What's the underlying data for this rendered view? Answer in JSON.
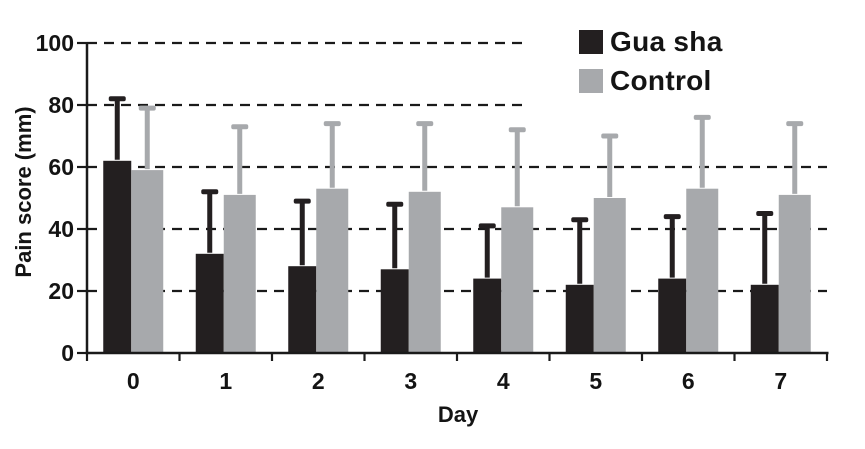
{
  "chart_data": {
    "type": "bar",
    "title": "",
    "xlabel": "Day",
    "ylabel": "Pain score (mm)",
    "categories": [
      "0",
      "1",
      "2",
      "3",
      "4",
      "5",
      "6",
      "7"
    ],
    "y_ticks": [
      0,
      20,
      40,
      60,
      80,
      100
    ],
    "ylim": [
      0,
      100
    ],
    "grid": "horizontal dashed lines at 20, 40, 60, 80, 100",
    "legend_position": "top-right inside plot",
    "error_bars": "upper only, with caps",
    "series": [
      {
        "name": "Gua sha",
        "color": "#231f20",
        "values": [
          62,
          32,
          28,
          27,
          24,
          22,
          24,
          22
        ],
        "error_bar_top": [
          82,
          52,
          49,
          48,
          41,
          43,
          44,
          45
        ]
      },
      {
        "name": "Control",
        "color": "#a7a9ac",
        "values": [
          59,
          51,
          53,
          52,
          47,
          50,
          53,
          51
        ],
        "error_bar_top": [
          79,
          73,
          74,
          74,
          72,
          70,
          76,
          74
        ]
      }
    ],
    "colors": {
      "axis": "#1a1a1a",
      "grid": "#1a1a1a",
      "text": "#141414",
      "background": "#ffffff"
    }
  }
}
